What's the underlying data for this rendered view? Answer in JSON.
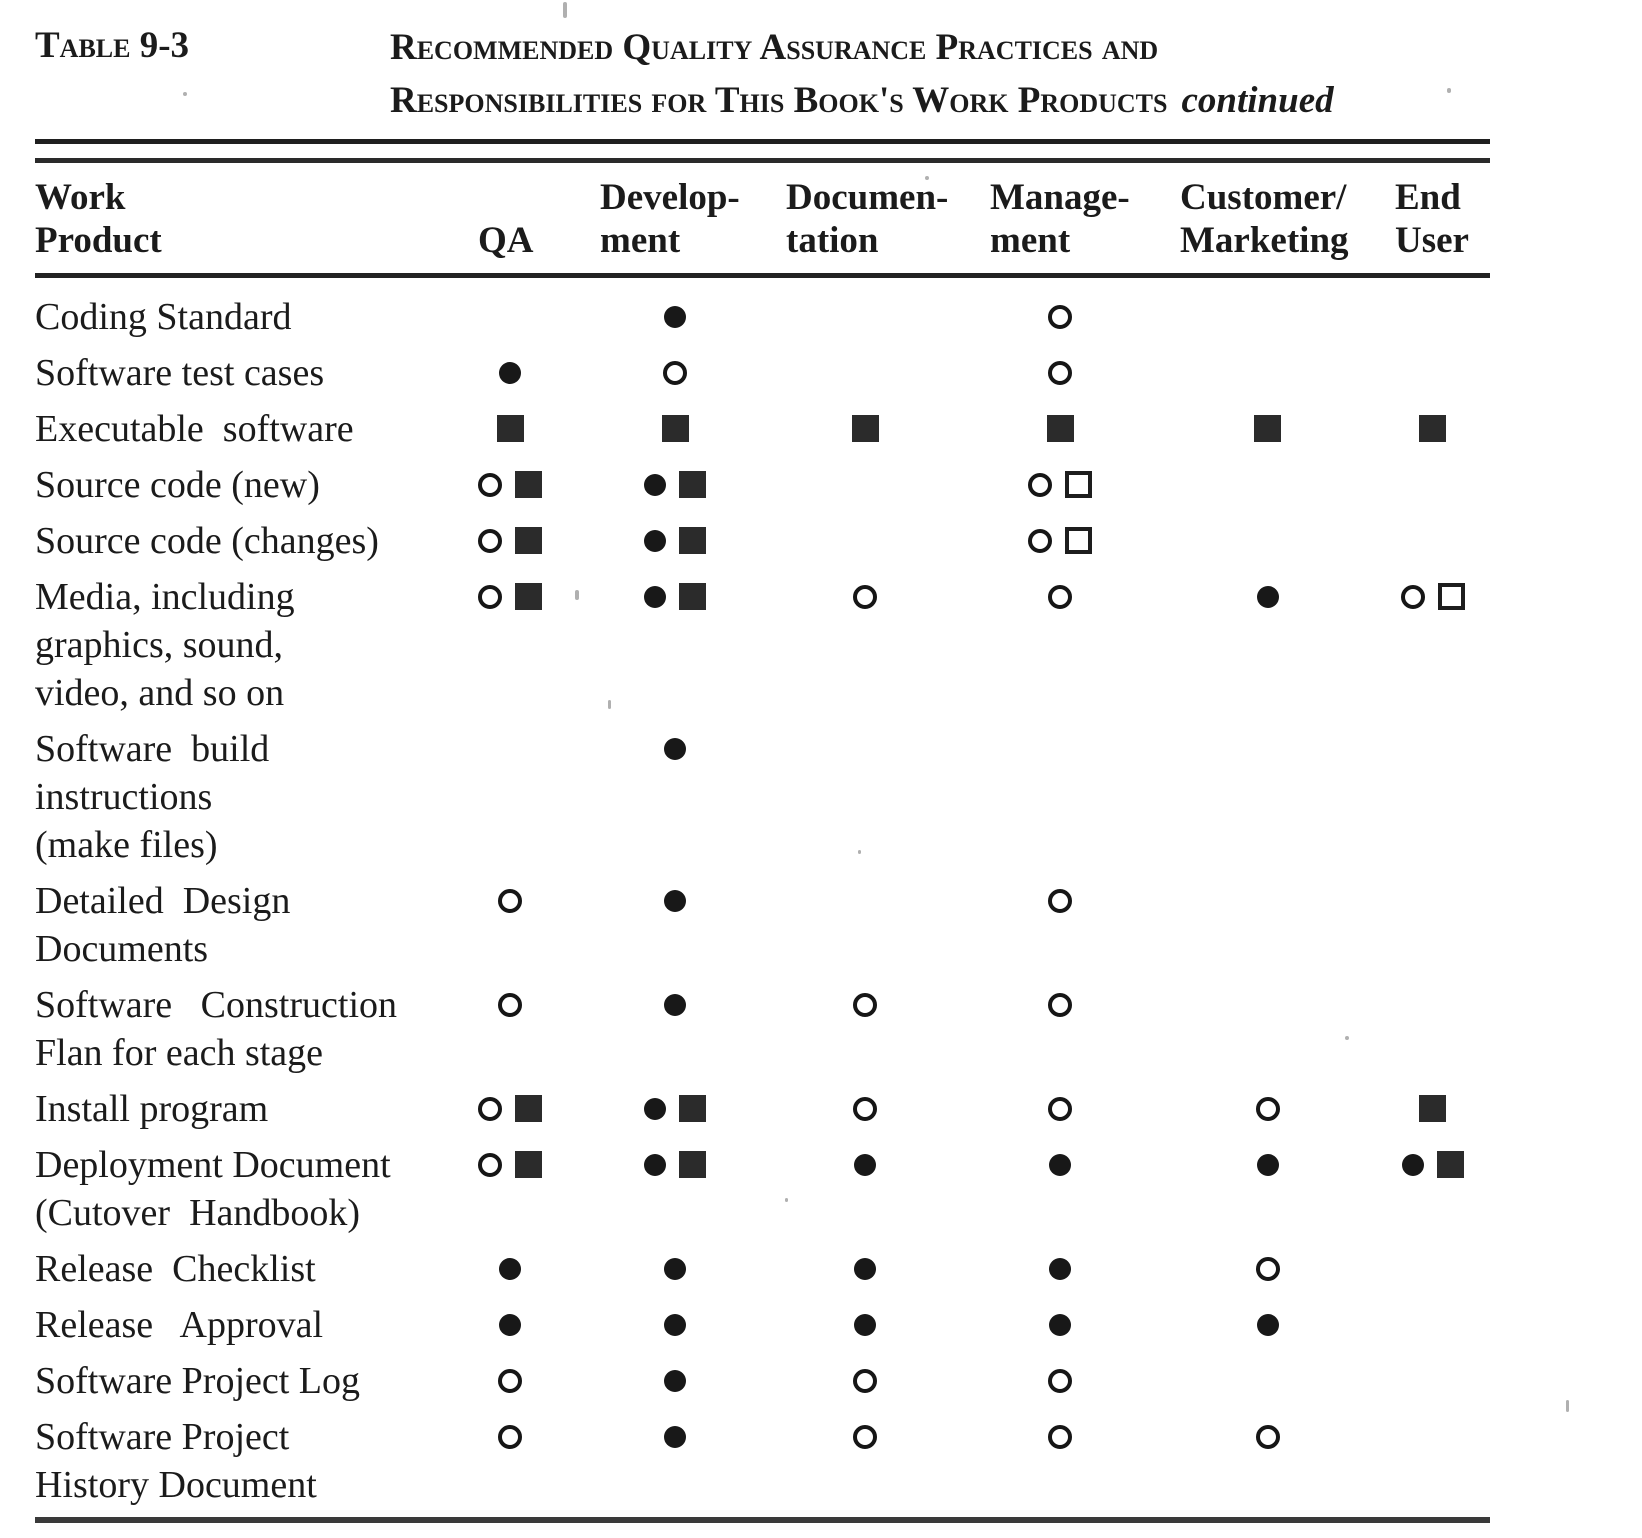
{
  "colors": {
    "ink": "#1b1b1b",
    "paper": "#ffffff"
  },
  "header": {
    "table_label": "Table 9-3",
    "title_line1": "Recommended Quality Assurance Practices and",
    "title_line2": "Responsibilities for This Book's Work Products",
    "continued_note": "continued"
  },
  "columns": [
    {
      "key": "product",
      "lines": [
        "Work",
        "Product"
      ]
    },
    {
      "key": "qa",
      "lines": [
        "",
        "QA"
      ]
    },
    {
      "key": "development",
      "lines": [
        "Develop-",
        "ment"
      ]
    },
    {
      "key": "documentation",
      "lines": [
        "Documen-",
        "tation"
      ]
    },
    {
      "key": "management",
      "lines": [
        "Manage-",
        "ment"
      ]
    },
    {
      "key": "customer",
      "lines": [
        "Customer/",
        "Marketing"
      ]
    },
    {
      "key": "enduser",
      "lines": [
        "End",
        "User"
      ]
    }
  ],
  "symbol_names": [
    "filled-circle",
    "open-circle",
    "filled-square",
    "open-square"
  ],
  "rows": [
    {
      "product_lines": [
        "Coding Standard"
      ],
      "cells": {
        "qa": [],
        "development": [
          "filled-circle"
        ],
        "documentation": [],
        "management": [
          "open-circle"
        ],
        "customer": [],
        "enduser": []
      }
    },
    {
      "product_lines": [
        "Software test cases"
      ],
      "cells": {
        "qa": [
          "filled-circle"
        ],
        "development": [
          "open-circle"
        ],
        "documentation": [],
        "management": [
          "open-circle"
        ],
        "customer": [],
        "enduser": []
      }
    },
    {
      "product_lines": [
        "Executable  software"
      ],
      "cells": {
        "qa": [
          "filled-square"
        ],
        "development": [
          "filled-square"
        ],
        "documentation": [
          "filled-square"
        ],
        "management": [
          "filled-square"
        ],
        "customer": [
          "filled-square"
        ],
        "enduser": [
          "filled-square"
        ]
      }
    },
    {
      "product_lines": [
        "Source code (new)"
      ],
      "cells": {
        "qa": [
          "open-circle",
          "filled-square"
        ],
        "development": [
          "filled-circle",
          "filled-square"
        ],
        "documentation": [],
        "management": [
          "open-circle",
          "open-square"
        ],
        "customer": [],
        "enduser": []
      }
    },
    {
      "product_lines": [
        "Source code (changes)"
      ],
      "cells": {
        "qa": [
          "open-circle",
          "filled-square"
        ],
        "development": [
          "filled-circle",
          "filled-square"
        ],
        "documentation": [],
        "management": [
          "open-circle",
          "open-square"
        ],
        "customer": [],
        "enduser": []
      }
    },
    {
      "product_lines": [
        "Media, including",
        "graphics, sound,",
        "video, and so on"
      ],
      "cells": {
        "qa": [
          "open-circle",
          "filled-square"
        ],
        "development": [
          "filled-circle",
          "filled-square"
        ],
        "documentation": [
          "open-circle"
        ],
        "management": [
          "open-circle"
        ],
        "customer": [
          "filled-circle"
        ],
        "enduser": [
          "open-circle",
          "open-square"
        ]
      }
    },
    {
      "product_lines": [
        "Software  build",
        "instructions",
        "(make files)"
      ],
      "cells": {
        "qa": [],
        "development": [
          "filled-circle"
        ],
        "documentation": [],
        "management": [],
        "customer": [],
        "enduser": []
      }
    },
    {
      "product_lines": [
        "Detailed  Design",
        "Documents"
      ],
      "cells": {
        "qa": [
          "open-circle"
        ],
        "development": [
          "filled-circle"
        ],
        "documentation": [],
        "management": [
          "open-circle"
        ],
        "customer": [],
        "enduser": []
      }
    },
    {
      "product_lines": [
        "Software   Construction",
        "Flan for each stage"
      ],
      "cells": {
        "qa": [
          "open-circle"
        ],
        "development": [
          "filled-circle"
        ],
        "documentation": [
          "open-circle"
        ],
        "management": [
          "open-circle"
        ],
        "customer": [],
        "enduser": []
      }
    },
    {
      "product_lines": [
        "Install program"
      ],
      "cells": {
        "qa": [
          "open-circle",
          "filled-square"
        ],
        "development": [
          "filled-circle",
          "filled-square"
        ],
        "documentation": [
          "open-circle"
        ],
        "management": [
          "open-circle"
        ],
        "customer": [
          "open-circle"
        ],
        "enduser": [
          "filled-square"
        ]
      }
    },
    {
      "product_lines": [
        "Deployment Document",
        "(Cutover  Handbook)"
      ],
      "cells": {
        "qa": [
          "open-circle",
          "filled-square"
        ],
        "development": [
          "filled-circle",
          "filled-square"
        ],
        "documentation": [
          "filled-circle"
        ],
        "management": [
          "filled-circle"
        ],
        "customer": [
          "filled-circle"
        ],
        "enduser": [
          "filled-circle",
          "filled-square"
        ]
      }
    },
    {
      "product_lines": [
        "Release  Checklist"
      ],
      "cells": {
        "qa": [
          "filled-circle"
        ],
        "development": [
          "filled-circle"
        ],
        "documentation": [
          "filled-circle"
        ],
        "management": [
          "filled-circle"
        ],
        "customer": [
          "open-circle"
        ],
        "enduser": []
      }
    },
    {
      "product_lines": [
        "Release   Approval"
      ],
      "cells": {
        "qa": [
          "filled-circle"
        ],
        "development": [
          "filled-circle"
        ],
        "documentation": [
          "filled-circle"
        ],
        "management": [
          "filled-circle"
        ],
        "customer": [
          "filled-circle"
        ],
        "enduser": []
      }
    },
    {
      "product_lines": [
        "Software Project Log"
      ],
      "cells": {
        "qa": [
          "open-circle"
        ],
        "development": [
          "filled-circle"
        ],
        "documentation": [
          "open-circle"
        ],
        "management": [
          "open-circle"
        ],
        "customer": [],
        "enduser": []
      }
    },
    {
      "product_lines": [
        "Software Project",
        "History Document"
      ],
      "cells": {
        "qa": [
          "open-circle"
        ],
        "development": [
          "filled-circle"
        ],
        "documentation": [
          "open-circle"
        ],
        "management": [
          "open-circle"
        ],
        "customer": [
          "open-circle"
        ],
        "enduser": []
      }
    }
  ]
}
